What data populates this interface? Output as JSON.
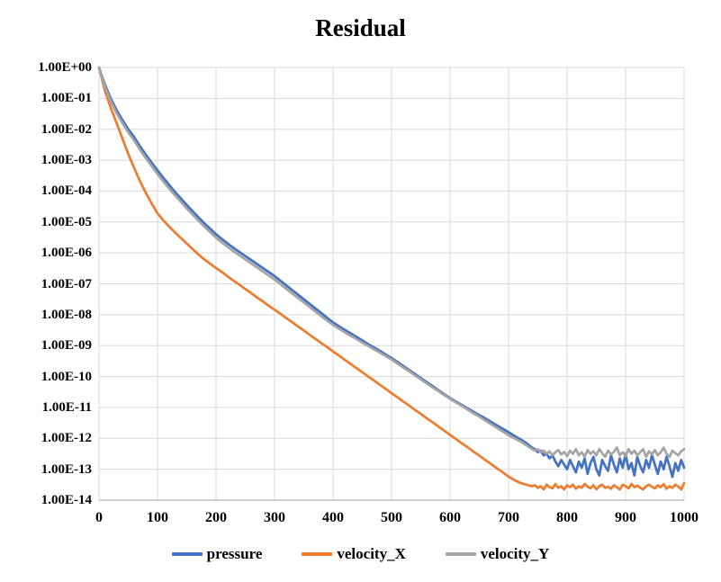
{
  "chart_data": {
    "type": "line",
    "title": "Residual",
    "xlabel": "",
    "ylabel": "",
    "grid": true,
    "legend_position": "bottom",
    "x_axis": {
      "min": 0,
      "max": 1000,
      "tick_step": 100,
      "tick_labels": [
        "0",
        "100",
        "200",
        "300",
        "400",
        "500",
        "600",
        "700",
        "800",
        "900",
        "1000"
      ]
    },
    "y_axis": {
      "scale": "log10",
      "min": 1e-14,
      "max": 1,
      "tick_labels": [
        "1.00E+00",
        "1.00E-01",
        "1.00E-02",
        "1.00E-03",
        "1.00E-04",
        "1.00E-05",
        "1.00E-06",
        "1.00E-07",
        "1.00E-08",
        "1.00E-09",
        "1.00E-10",
        "1.00E-11",
        "1.00E-12",
        "1.00E-13",
        "1.00E-14"
      ]
    },
    "grid_color": "#d9d9d9",
    "axis_line_color": "#bfbfbf",
    "value_encoding": "log10_values are log10(residual); residual = 10^value",
    "x": [
      0,
      10,
      20,
      30,
      40,
      50,
      60,
      70,
      80,
      90,
      100,
      110,
      120,
      130,
      140,
      150,
      160,
      170,
      180,
      190,
      200,
      210,
      220,
      230,
      240,
      250,
      260,
      270,
      280,
      290,
      300,
      310,
      320,
      330,
      340,
      350,
      360,
      370,
      380,
      390,
      400,
      410,
      420,
      430,
      440,
      450,
      460,
      470,
      480,
      490,
      500,
      510,
      520,
      530,
      540,
      550,
      560,
      570,
      580,
      590,
      600,
      610,
      620,
      630,
      640,
      650,
      660,
      670,
      680,
      690,
      700,
      710,
      720,
      730,
      740,
      745,
      750,
      755,
      760,
      765,
      770,
      775,
      780,
      785,
      790,
      795,
      800,
      805,
      810,
      815,
      820,
      825,
      830,
      835,
      840,
      845,
      850,
      855,
      860,
      865,
      870,
      875,
      880,
      885,
      890,
      895,
      900,
      905,
      910,
      915,
      920,
      925,
      930,
      935,
      940,
      945,
      950,
      955,
      960,
      965,
      970,
      975,
      980,
      985,
      990,
      995,
      1000
    ],
    "series": [
      {
        "name": "pressure",
        "color": "#4472C4",
        "log10_values": [
          0,
          -0.55,
          -1.0,
          -1.38,
          -1.7,
          -2.0,
          -2.25,
          -2.55,
          -2.82,
          -3.08,
          -3.33,
          -3.57,
          -3.8,
          -4.03,
          -4.24,
          -4.45,
          -4.65,
          -4.85,
          -5.04,
          -5.22,
          -5.4,
          -5.55,
          -5.7,
          -5.84,
          -5.97,
          -6.1,
          -6.23,
          -6.36,
          -6.49,
          -6.62,
          -6.75,
          -6.9,
          -7.05,
          -7.2,
          -7.35,
          -7.5,
          -7.65,
          -7.8,
          -7.95,
          -8.1,
          -8.25,
          -8.37,
          -8.49,
          -8.6,
          -8.72,
          -8.83,
          -8.95,
          -9.06,
          -9.17,
          -9.29,
          -9.4,
          -9.53,
          -9.66,
          -9.79,
          -9.92,
          -10.05,
          -10.18,
          -10.31,
          -10.44,
          -10.57,
          -10.7,
          -10.81,
          -10.92,
          -11.03,
          -11.14,
          -11.25,
          -11.35,
          -11.47,
          -11.58,
          -11.69,
          -11.8,
          -11.92,
          -12.03,
          -12.15,
          -12.3,
          -12.35,
          -12.45,
          -12.4,
          -12.55,
          -12.5,
          -12.65,
          -12.55,
          -12.75,
          -12.9,
          -12.7,
          -12.85,
          -13.0,
          -12.7,
          -12.9,
          -13.1,
          -12.75,
          -12.95,
          -12.65,
          -13.15,
          -12.8,
          -12.6,
          -13.0,
          -13.2,
          -12.7,
          -12.9,
          -13.05,
          -12.55,
          -12.85,
          -13.1,
          -12.65,
          -12.95,
          -12.5,
          -13.0,
          -12.8,
          -13.2,
          -12.6,
          -12.9,
          -13.1,
          -12.7,
          -12.95,
          -12.55,
          -12.85,
          -13.15,
          -12.75,
          -13.0,
          -12.6,
          -12.9,
          -13.25,
          -12.8,
          -13.05,
          -12.7,
          -12.95
        ]
      },
      {
        "name": "velocity_X",
        "color": "#ED7D31",
        "log10_values": [
          0,
          -0.75,
          -1.3,
          -1.8,
          -2.3,
          -2.8,
          -3.25,
          -3.68,
          -4.06,
          -4.4,
          -4.72,
          -4.95,
          -5.15,
          -5.34,
          -5.52,
          -5.7,
          -5.88,
          -6.05,
          -6.21,
          -6.35,
          -6.49,
          -6.62,
          -6.76,
          -6.9,
          -7.03,
          -7.17,
          -7.3,
          -7.44,
          -7.57,
          -7.71,
          -7.84,
          -7.97,
          -8.11,
          -8.24,
          -8.38,
          -8.51,
          -8.65,
          -8.78,
          -8.92,
          -9.05,
          -9.19,
          -9.32,
          -9.46,
          -9.59,
          -9.73,
          -9.86,
          -10.0,
          -10.13,
          -10.27,
          -10.4,
          -10.54,
          -10.67,
          -10.81,
          -10.94,
          -11.08,
          -11.21,
          -11.35,
          -11.48,
          -11.62,
          -11.75,
          -11.89,
          -12.02,
          -12.16,
          -12.29,
          -12.43,
          -12.56,
          -12.7,
          -12.83,
          -12.97,
          -13.1,
          -13.24,
          -13.35,
          -13.44,
          -13.5,
          -13.55,
          -13.52,
          -13.6,
          -13.55,
          -13.65,
          -13.5,
          -13.58,
          -13.62,
          -13.48,
          -13.6,
          -13.55,
          -13.65,
          -13.52,
          -13.58,
          -13.5,
          -13.63,
          -13.55,
          -13.6,
          -13.48,
          -13.56,
          -13.62,
          -13.52,
          -13.65,
          -13.55,
          -13.5,
          -13.6,
          -13.57,
          -13.63,
          -13.52,
          -13.58,
          -13.65,
          -13.5,
          -13.55,
          -13.62,
          -13.48,
          -13.58,
          -13.53,
          -13.6,
          -13.65,
          -13.55,
          -13.5,
          -13.57,
          -13.62,
          -13.52,
          -13.58,
          -13.48,
          -13.63,
          -13.55,
          -13.6,
          -13.5,
          -13.56,
          -13.65,
          -13.45
        ]
      },
      {
        "name": "velocity_Y",
        "color": "#A5A5A5",
        "log10_values": [
          0,
          -0.62,
          -1.09,
          -1.48,
          -1.8,
          -2.1,
          -2.36,
          -2.66,
          -2.93,
          -3.19,
          -3.45,
          -3.69,
          -3.92,
          -4.14,
          -4.35,
          -4.56,
          -4.76,
          -4.96,
          -5.15,
          -5.33,
          -5.51,
          -5.66,
          -5.81,
          -5.95,
          -6.08,
          -6.21,
          -6.34,
          -6.47,
          -6.6,
          -6.73,
          -6.86,
          -7.01,
          -7.16,
          -7.31,
          -7.46,
          -7.6,
          -7.75,
          -7.9,
          -8.05,
          -8.19,
          -8.33,
          -8.45,
          -8.57,
          -8.68,
          -8.79,
          -8.9,
          -9.01,
          -9.12,
          -9.23,
          -9.34,
          -9.45,
          -9.58,
          -9.71,
          -9.83,
          -9.96,
          -10.09,
          -10.22,
          -10.35,
          -10.47,
          -10.6,
          -10.72,
          -10.84,
          -10.95,
          -11.07,
          -11.19,
          -11.3,
          -11.42,
          -11.54,
          -11.66,
          -11.78,
          -11.9,
          -12.0,
          -12.1,
          -12.22,
          -12.35,
          -12.4,
          -12.35,
          -12.45,
          -12.4,
          -12.5,
          -12.42,
          -12.55,
          -12.45,
          -12.38,
          -12.52,
          -12.44,
          -12.58,
          -12.4,
          -12.5,
          -12.35,
          -12.55,
          -12.45,
          -12.6,
          -12.38,
          -12.5,
          -12.42,
          -12.55,
          -12.35,
          -12.48,
          -12.6,
          -12.4,
          -12.52,
          -12.44,
          -12.3,
          -12.55,
          -12.45,
          -12.58,
          -12.35,
          -12.5,
          -12.4,
          -12.55,
          -12.45,
          -12.35,
          -12.6,
          -12.42,
          -12.52,
          -12.38,
          -12.55,
          -12.45,
          -12.3,
          -12.5,
          -12.6,
          -12.4,
          -12.48,
          -12.55,
          -12.42,
          -12.35
        ]
      }
    ]
  }
}
